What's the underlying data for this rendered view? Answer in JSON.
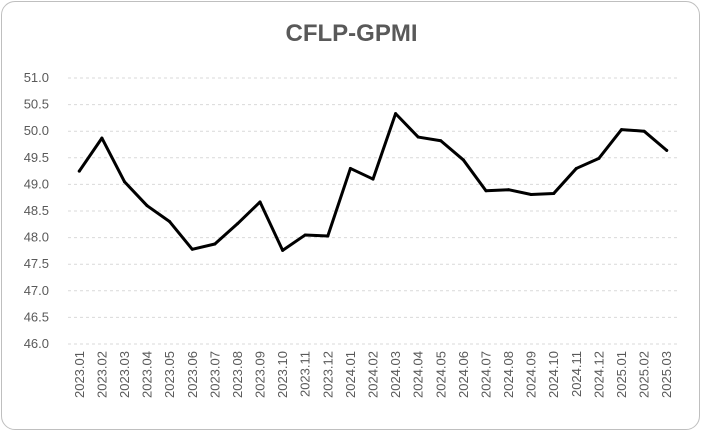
{
  "chart_data": {
    "type": "line",
    "title": "CFLP-GPMI",
    "xlabel": "",
    "ylabel": "",
    "ylim": [
      46.0,
      51.0
    ],
    "ytick_step": 0.5,
    "grid": "horizontal dashed",
    "legend": "none",
    "line_color": "#000000",
    "categories": [
      "2023.01",
      "2023.02",
      "2023.03",
      "2023.04",
      "2023.05",
      "2023.06",
      "2023.07",
      "2023.08",
      "2023.09",
      "2023.10",
      "2023.11",
      "2023.12",
      "2024.01",
      "2024.02",
      "2024.03",
      "2024.04",
      "2024.05",
      "2024.06",
      "2024.07",
      "2024.08",
      "2024.09",
      "2024.10",
      "2024.11",
      "2024.12",
      "2025.01",
      "2025.02",
      "2025.03"
    ],
    "series": [
      {
        "values": [
          49.25,
          49.87,
          49.05,
          48.6,
          48.3,
          47.78,
          47.88,
          48.26,
          48.67,
          47.76,
          48.05,
          48.03,
          49.3,
          49.1,
          50.33,
          49.89,
          49.82,
          49.46,
          48.88,
          48.9,
          48.81,
          48.83,
          49.3,
          49.49,
          50.03,
          50.0,
          49.64
        ]
      }
    ]
  }
}
